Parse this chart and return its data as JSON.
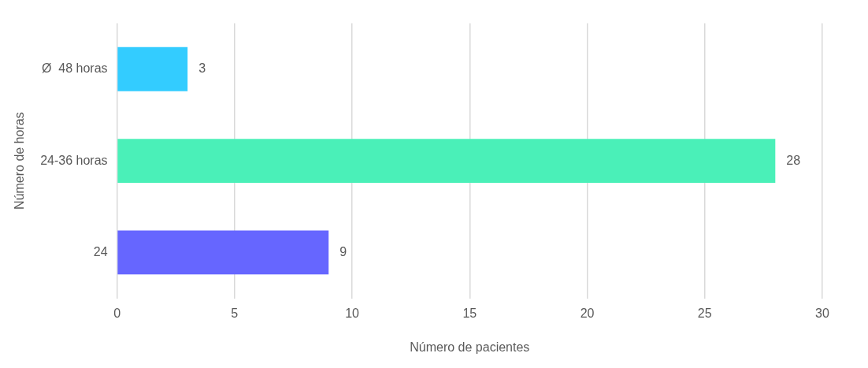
{
  "chart_data": {
    "type": "bar",
    "orientation": "horizontal",
    "xlabel": "Número de pacientes",
    "ylabel": "Número de horas",
    "categories": [
      "Ø  48 horas",
      "24-36 horas",
      "24"
    ],
    "values": [
      3,
      28,
      9
    ],
    "colors": [
      "#33ccff",
      "#4af0b8",
      "#6666ff"
    ],
    "xlim": [
      0,
      30
    ],
    "xticks": [
      0,
      5,
      10,
      15,
      20,
      25,
      30
    ],
    "grid": "x",
    "data_labels": true,
    "legend": false
  }
}
